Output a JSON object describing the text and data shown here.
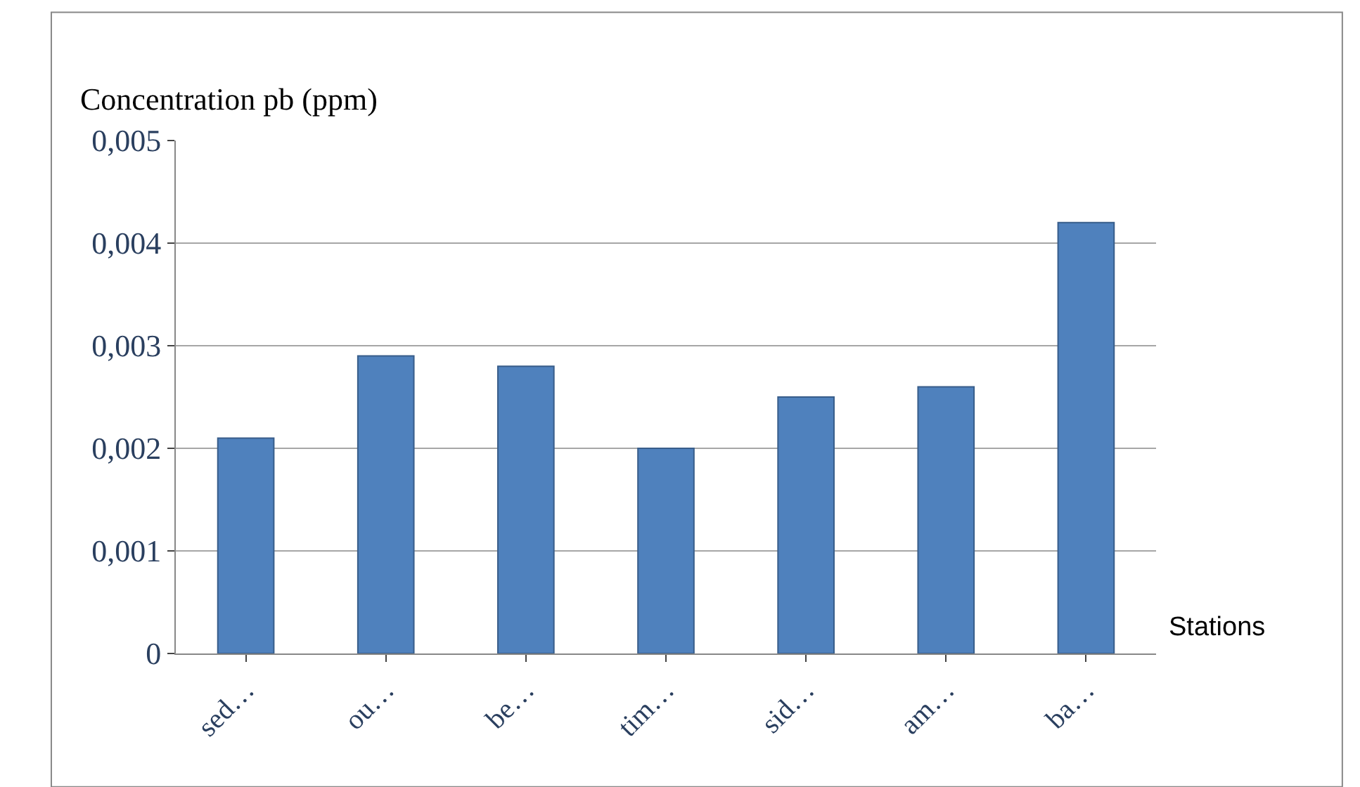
{
  "chart_data": {
    "type": "bar",
    "ylabel": "Concentration pb (ppm)",
    "xlabel": "Stations",
    "categories": [
      "sed…",
      "ou…",
      "be…",
      "tim…",
      "sid…",
      "am…",
      "ba…"
    ],
    "values": [
      0.0021,
      0.0029,
      0.0028,
      0.002,
      0.0025,
      0.0026,
      0.0042
    ],
    "color": "#4f81bd",
    "ylim": [
      0,
      0.005
    ],
    "yticks": [
      0,
      {
        "value": 0.001,
        "label": "0,001"
      },
      {
        "value": 0.002,
        "label": "0,002"
      },
      {
        "value": 0.003,
        "label": "0,003"
      },
      {
        "value": 0.004,
        "label": "0,004"
      },
      {
        "value": 0.005,
        "label": "0,005"
      }
    ],
    "grid": "y"
  }
}
